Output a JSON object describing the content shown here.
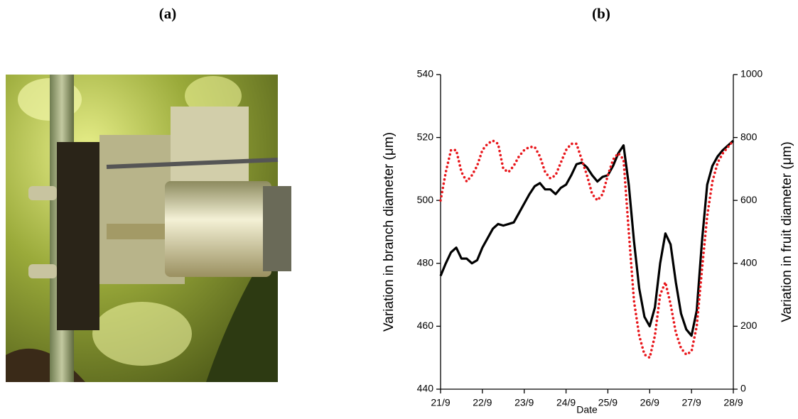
{
  "photo_label": "(a)",
  "chart_data": {
    "type": "line",
    "title": "(b)",
    "x_label": "Date",
    "y_label": "Variation in branch diameter  (μm)",
    "y2_label": "Variation in fruit diameter  (μm)",
    "x": [
      21.0,
      21.125,
      21.25,
      21.375,
      21.5,
      21.625,
      21.75,
      21.875,
      22.0,
      22.125,
      22.25,
      22.375,
      22.5,
      22.625,
      22.75,
      22.875,
      23.0,
      23.125,
      23.25,
      23.375,
      23.5,
      23.625,
      23.75,
      23.875,
      24.0,
      24.125,
      24.25,
      24.375,
      24.5,
      24.625,
      24.75,
      24.875,
      25.0,
      25.125,
      25.25,
      25.375,
      25.5,
      25.625,
      25.75,
      25.875,
      26.0,
      26.125,
      26.25,
      26.375,
      26.5,
      26.625,
      26.75,
      26.875,
      27.0,
      27.125,
      27.25,
      27.375,
      27.5,
      27.625,
      27.75,
      27.875,
      28.0
    ],
    "series": [
      {
        "color": "#000000",
        "style": "solid",
        "axis": "y",
        "values": [
          476,
          480,
          483.5,
          485,
          481.5,
          481.5,
          480,
          481,
          485,
          488,
          491,
          492.5,
          492,
          492.5,
          493,
          496,
          499,
          502,
          504.5,
          505.5,
          503.5,
          503.5,
          502,
          504,
          505,
          508,
          511.5,
          512,
          510.5,
          508,
          506,
          507.5,
          508,
          511,
          515,
          517.5,
          505,
          487,
          472,
          463,
          460,
          466,
          480,
          489.5,
          486,
          474,
          464,
          459,
          457,
          465,
          487,
          505,
          511,
          514,
          516,
          517.5,
          519
        ]
      },
      {
        "color": "#e8161b",
        "style": "dotted",
        "axis": "y2",
        "values": [
          600,
          690,
          760,
          760,
          690,
          660,
          680,
          710,
          760,
          780,
          790,
          780,
          700,
          690,
          710,
          740,
          760,
          770,
          770,
          740,
          690,
          670,
          680,
          720,
          760,
          780,
          780,
          730,
          680,
          620,
          600,
          620,
          680,
          730,
          750,
          730,
          500,
          280,
          170,
          110,
          100,
          170,
          300,
          340,
          270,
          180,
          130,
          110,
          120,
          200,
          380,
          550,
          660,
          720,
          750,
          770,
          790
        ]
      }
    ],
    "xlim": [
      21,
      28
    ],
    "xticks": [
      {
        "value": 21,
        "label": "21/9"
      },
      {
        "value": 22,
        "label": "22/9"
      },
      {
        "value": 23,
        "label": "23/9"
      },
      {
        "value": 24,
        "label": "24/9"
      },
      {
        "value": 25,
        "label": "25/9"
      },
      {
        "value": 26,
        "label": "26/9"
      },
      {
        "value": 27,
        "label": "27/9"
      },
      {
        "value": 28,
        "label": "28/9"
      }
    ],
    "ylim": [
      440,
      540
    ],
    "yticks": [
      440,
      460,
      480,
      500,
      520,
      540
    ],
    "y2lim": [
      0,
      1000
    ],
    "y2ticks": [
      0,
      200,
      400,
      600,
      800,
      1000
    ]
  }
}
